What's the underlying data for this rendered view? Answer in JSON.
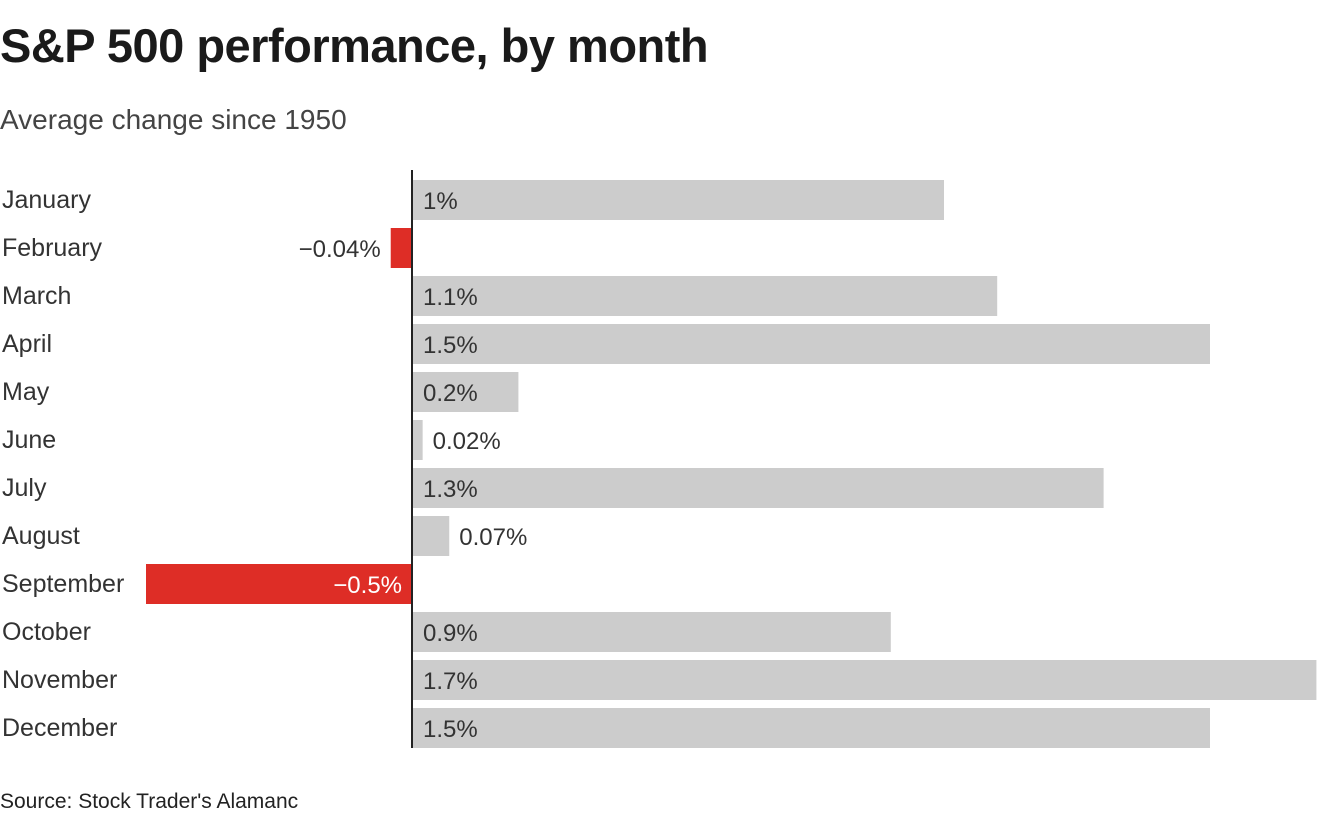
{
  "header": {
    "title": "S&P 500 performance, by month",
    "subtitle": "Average change since 1950"
  },
  "footer": {
    "source": "Source: Stock Trader's Alamanc"
  },
  "colors": {
    "positive": "#cccccc",
    "negative": "#de2d26",
    "axis": "#222222"
  },
  "chart_data": {
    "type": "bar",
    "orientation": "horizontal",
    "title": "S&P 500 performance, by month",
    "subtitle": "Average change since 1950",
    "unit": "%",
    "xlim": [
      -0.5,
      1.7
    ],
    "grid": false,
    "categories": [
      "January",
      "February",
      "March",
      "April",
      "May",
      "June",
      "July",
      "August",
      "September",
      "October",
      "November",
      "December"
    ],
    "values": [
      1.0,
      -0.04,
      1.1,
      1.5,
      0.2,
      0.02,
      1.3,
      0.07,
      -0.5,
      0.9,
      1.7,
      1.5
    ],
    "labels": [
      "1%",
      "−0.04%",
      "1.1%",
      "1.5%",
      "0.2%",
      "0.02%",
      "1.3%",
      "0.07%",
      "−0.5%",
      "0.9%",
      "1.7%",
      "1.5%"
    ]
  }
}
